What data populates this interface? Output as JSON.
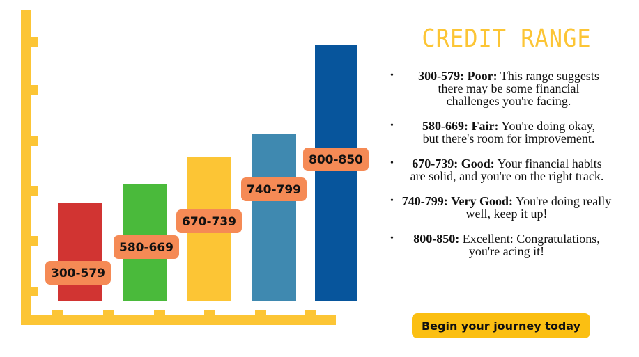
{
  "chart": {
    "bars": [
      {
        "label": "300-579",
        "color": "#d13432"
      },
      {
        "label": "580-669",
        "color": "#4aba3b"
      },
      {
        "label": "670-739",
        "color": "#fcc535"
      },
      {
        "label": "740-799",
        "color": "#3f89b0"
      },
      {
        "label": "800-850",
        "color": "#07559c"
      }
    ]
  },
  "sidebar": {
    "title": "CREDIT RANGE",
    "items": [
      {
        "range": "300-579:",
        "rating": "Poor:",
        "text": "This range suggests there may be some financial challenges you're facing."
      },
      {
        "range": "580-669:",
        "rating": "Fair:",
        "text": "You're doing okay, but there's room for improvement."
      },
      {
        "range": "670-739:",
        "rating": "Good:",
        "text": "Your financial habits are solid, and you're on the right track."
      },
      {
        "range": "740-799:",
        "rating": "Very Good:",
        "text": "You're doing really well, keep it up!"
      },
      {
        "range": "800-850:",
        "rating": "Excellent:",
        "text": "Congratulations, you're acing it!"
      }
    ],
    "button": "Begin your journey today"
  }
}
